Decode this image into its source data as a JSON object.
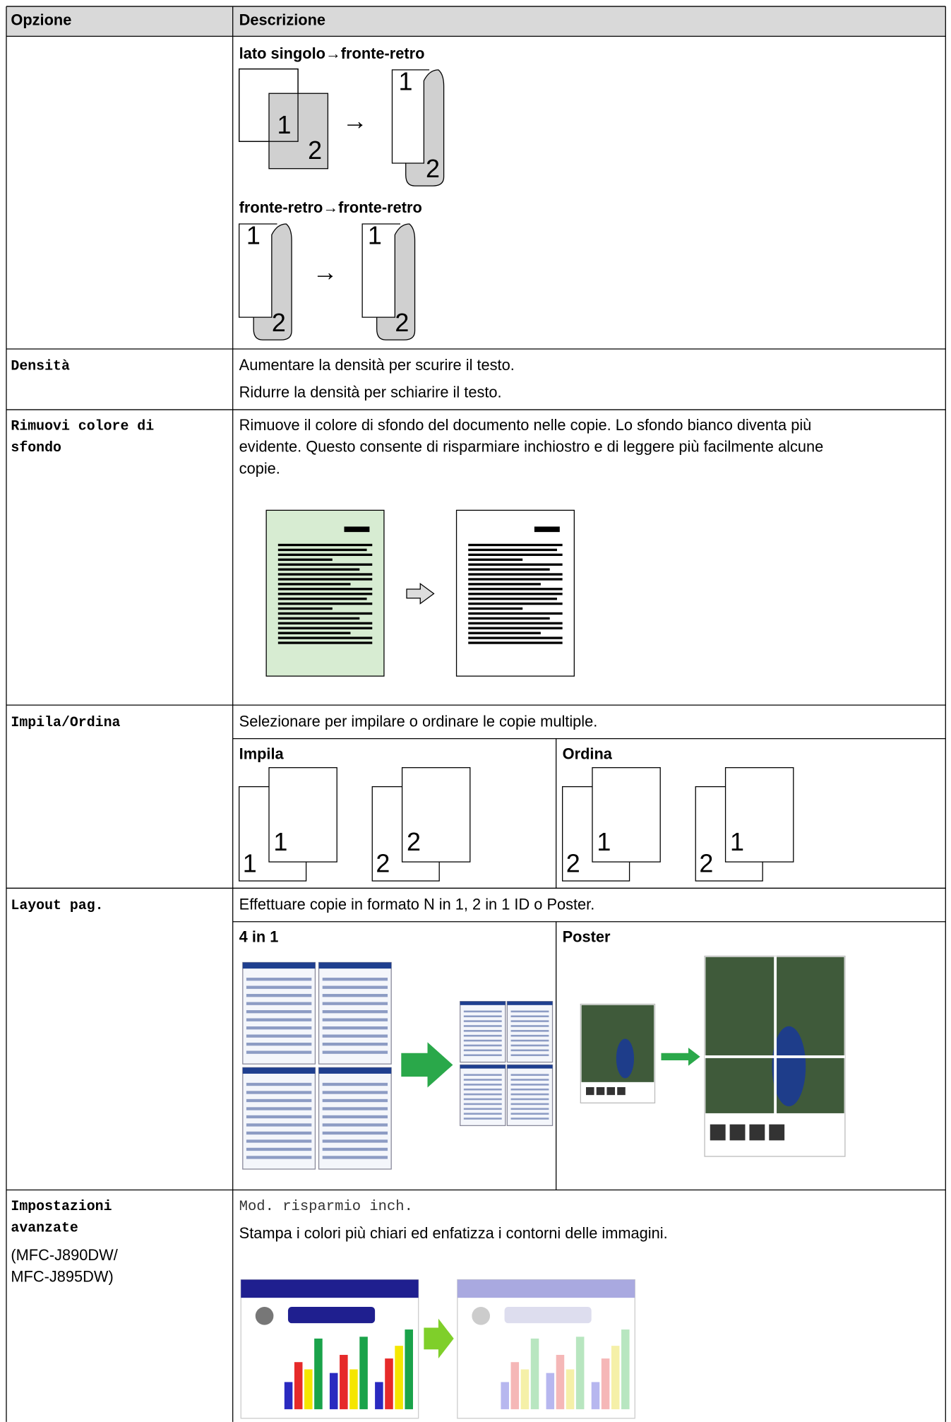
{
  "header": {
    "option": "Opzione",
    "description": "Descrizione"
  },
  "rows": [
    {
      "captions": [
        "lato singolo→fronte-retro",
        "fronte-retro→fronte-retro"
      ],
      "diagram_labels": [
        "1",
        "2",
        "→",
        "1",
        "2",
        "1",
        "2",
        "→",
        "1",
        "2"
      ]
    },
    {
      "option": "Densità",
      "description": [
        "Aumentare la densità per scurire il testo.",
        "Ridurre la densità per schiarire il testo."
      ]
    },
    {
      "option": [
        "Rimuovi colore di",
        "sfondo"
      ],
      "description": [
        "Rimuove il colore di sfondo del documento nelle copie. Lo sfondo bianco diventa più",
        "evidente. Questo consente di risparmiare inchiostro e di leggere più facilmente alcune",
        "copie."
      ]
    },
    {
      "option": "Impila/Ordina",
      "description": "Selezionare per impilare o ordinare le copie multiple.",
      "subheaders": [
        "Impila",
        "Ordina"
      ],
      "diagram_labels": [
        "1",
        "1",
        "2",
        "2",
        "2",
        "1",
        "2",
        "1"
      ]
    },
    {
      "option": "Layout pag.",
      "description": "Effettuare copie in formato N in 1, 2 in 1 ID o Poster.",
      "subheaders": [
        "4 in 1",
        "Poster"
      ]
    },
    {
      "option": [
        "Impostazioni",
        "avanzate"
      ],
      "models": [
        "(MFC-J890DW/",
        "MFC-J895DW)"
      ],
      "setting": "Mod. risparmio inch.",
      "description": "Stampa i colori più chiari ed enfatizza i contorni delle immagini."
    }
  ]
}
